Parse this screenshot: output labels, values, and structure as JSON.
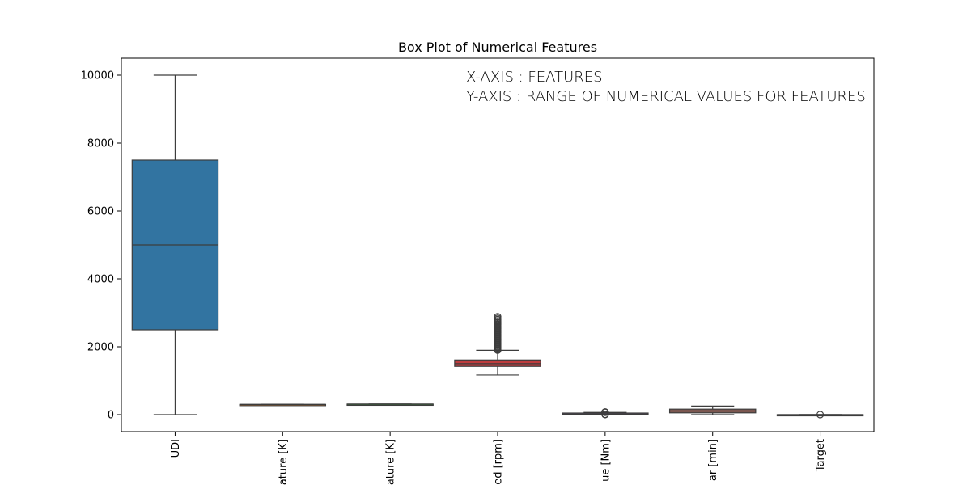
{
  "chart_data": {
    "type": "box",
    "title": "Box Plot of Numerical Features",
    "annotations": [
      "X-AXIS : FEATURES",
      "Y-AXIS : RANGE OF NUMERICAL VALUES FOR FEATURES"
    ],
    "xlabel": "",
    "ylabel": "",
    "ylim": [
      -500,
      10500
    ],
    "yticks": [
      0,
      2000,
      4000,
      6000,
      8000,
      10000
    ],
    "categories": [
      "UDI",
      "ature [K]",
      "ature [K]",
      "ed [rpm]",
      "ue [Nm]",
      "ar [min]",
      "Target"
    ],
    "grid": false,
    "boxes": [
      {
        "label": "UDI",
        "color": "#3274a1",
        "min": 1,
        "q1": 2500,
        "median": 5000,
        "q3": 7500,
        "max": 10000,
        "outliers": []
      },
      {
        "label": "ature [K]",
        "color": "#e1812c",
        "min": 295.3,
        "q1": 298.3,
        "median": 300.1,
        "q3": 301.5,
        "max": 304.5,
        "outliers": []
      },
      {
        "label": "ature [K]",
        "color": "#3a923a",
        "min": 305.7,
        "q1": 308.8,
        "median": 310.1,
        "q3": 311.1,
        "max": 313.8,
        "outliers": []
      },
      {
        "label": "ed [rpm]",
        "color": "#c03d3e",
        "min": 1168,
        "q1": 1423,
        "median": 1503,
        "q3": 1612,
        "max": 1895,
        "outliers": [
          1900,
          1930,
          1960,
          1990,
          2020,
          2050,
          2080,
          2110,
          2140,
          2170,
          2200,
          2230,
          2260,
          2290,
          2320,
          2350,
          2380,
          2410,
          2440,
          2470,
          2500,
          2530,
          2560,
          2590,
          2620,
          2650,
          2680,
          2720,
          2760,
          2800,
          2840,
          2886
        ]
      },
      {
        "label": "ue [Nm]",
        "color": "#9372b2",
        "min": 12.6,
        "q1": 33.2,
        "median": 40.1,
        "q3": 46.8,
        "max": 67.2,
        "outliers": [
          3.8,
          6,
          8,
          10,
          70,
          72,
          74,
          76.6
        ]
      },
      {
        "label": "ar [min]",
        "color": "#845b53",
        "min": 0,
        "q1": 53,
        "median": 108,
        "q3": 162,
        "max": 253,
        "outliers": []
      },
      {
        "label": "Target",
        "color": "#d684bd",
        "min": 0,
        "q1": 0,
        "median": 0,
        "q3": 0,
        "max": 0,
        "outliers": [
          1
        ]
      }
    ]
  }
}
